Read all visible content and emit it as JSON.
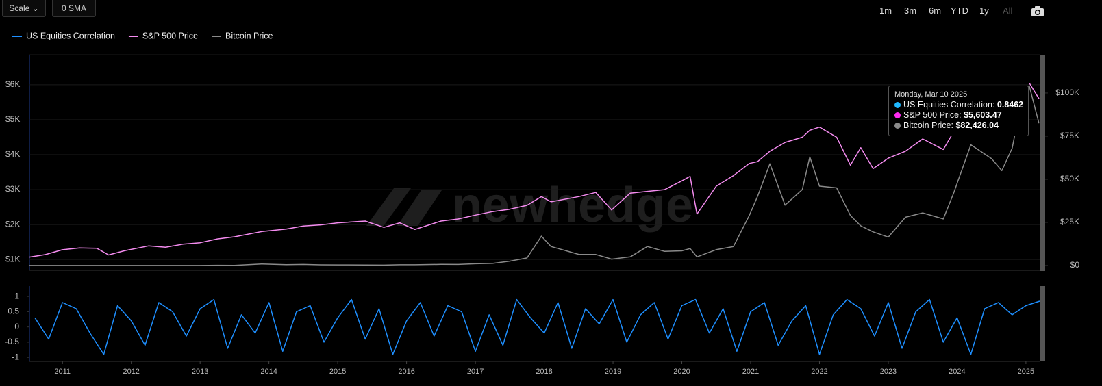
{
  "controls": {
    "scale": "Scale",
    "sma": "0 SMA",
    "ranges": [
      "1m",
      "3m",
      "6m",
      "YTD",
      "1y",
      "All"
    ]
  },
  "watermark": "newhedge",
  "tooltip": {
    "date": "Monday, Mar 10 2025",
    "items": [
      {
        "label": "US Equities Correlation:",
        "value": "0.8462",
        "color": "#1fb8ff"
      },
      {
        "label": "S&P 500 Price:",
        "value": "$5,603.47",
        "color": "#ff2bf0"
      },
      {
        "label": "Bitcoin Price:",
        "value": "$82,426.04",
        "color": "#8a8a8a"
      }
    ]
  },
  "chart_data": [
    {
      "type": "line",
      "x": [
        2010.52,
        2010.75,
        2011.0,
        2011.25,
        2011.5,
        2011.67,
        2011.9,
        2012.25,
        2012.5,
        2012.75,
        2013.0,
        2013.25,
        2013.5,
        2013.9,
        2014.25,
        2014.5,
        2014.75,
        2015.0,
        2015.4,
        2015.67,
        2015.9,
        2016.12,
        2016.5,
        2016.75,
        2017.0,
        2017.25,
        2017.5,
        2017.75,
        2017.96,
        2018.1,
        2018.5,
        2018.75,
        2018.98,
        2019.25,
        2019.5,
        2019.75,
        2020.0,
        2020.12,
        2020.22,
        2020.5,
        2020.75,
        2020.98,
        2021.1,
        2021.28,
        2021.5,
        2021.75,
        2021.86,
        2022.0,
        2022.25,
        2022.45,
        2022.6,
        2022.78,
        2023.0,
        2023.25,
        2023.5,
        2023.8,
        2023.95,
        2024.2,
        2024.5,
        2024.65,
        2024.8,
        2024.96,
        2025.05,
        2025.19
      ],
      "series": [
        {
          "name": "S&P 500 Price",
          "color": "#f58cf0",
          "axis": "y",
          "values": [
            1070,
            1140,
            1280,
            1330,
            1320,
            1130,
            1250,
            1390,
            1350,
            1440,
            1480,
            1590,
            1650,
            1800,
            1870,
            1960,
            1990,
            2050,
            2100,
            1920,
            2050,
            1860,
            2100,
            2160,
            2270,
            2370,
            2440,
            2550,
            2800,
            2650,
            2800,
            2920,
            2420,
            2900,
            2950,
            3000,
            3250,
            3380,
            2300,
            3100,
            3400,
            3750,
            3800,
            4100,
            4350,
            4500,
            4700,
            4790,
            4500,
            3700,
            4200,
            3600,
            3900,
            4100,
            4450,
            4150,
            4650,
            null,
            null,
            null,
            null,
            null,
            6050,
            5603.47
          ]
        },
        {
          "name": "Bitcoin Price",
          "color": "#8a8a8a",
          "axis": "y2",
          "values": [
            0.07,
            0.2,
            0.3,
            0.8,
            15,
            5,
            3,
            5,
            7,
            12,
            13,
            130,
            90,
            900,
            450,
            620,
            380,
            320,
            240,
            230,
            430,
            400,
            650,
            610,
            1000,
            1200,
            2500,
            4400,
            17000,
            11000,
            6500,
            6400,
            3700,
            5000,
            11000,
            8200,
            8500,
            9800,
            5000,
            9200,
            11000,
            29000,
            40000,
            59000,
            35000,
            44000,
            63000,
            46000,
            45000,
            29000,
            23000,
            19500,
            16500,
            28000,
            30500,
            27000,
            42000,
            70000,
            62000,
            55000,
            68000,
            100000,
            104000,
            82426.04
          ]
        }
      ],
      "xlim": [
        2010.52,
        2025.2
      ],
      "ylim": [
        690,
        6860
      ],
      "yticks": [
        {
          "value": 1000,
          "label": "$1K"
        },
        {
          "value": 2000,
          "label": "$2K"
        },
        {
          "value": 3000,
          "label": "$3K"
        },
        {
          "value": 4000,
          "label": "$4K"
        },
        {
          "value": 5000,
          "label": "$5K"
        },
        {
          "value": 6000,
          "label": "$6K"
        }
      ],
      "y2lim": [
        -2800,
        122200
      ],
      "y2ticks": [
        {
          "value": 0,
          "label": "$0"
        },
        {
          "value": 25000,
          "label": "$25K"
        },
        {
          "value": 50000,
          "label": "$50K"
        },
        {
          "value": 75000,
          "label": "$75K"
        },
        {
          "value": 100000,
          "label": "$100K"
        }
      ],
      "grid": true
    },
    {
      "type": "line",
      "x": [
        2010.6,
        2010.8,
        2011,
        2011.2,
        2011.4,
        2011.6,
        2011.8,
        2012,
        2012.2,
        2012.4,
        2012.6,
        2012.8,
        2013,
        2013.2,
        2013.4,
        2013.6,
        2013.8,
        2014,
        2014.2,
        2014.4,
        2014.6,
        2014.8,
        2015,
        2015.2,
        2015.4,
        2015.6,
        2015.8,
        2016,
        2016.2,
        2016.4,
        2016.6,
        2016.8,
        2017,
        2017.2,
        2017.4,
        2017.6,
        2017.8,
        2018,
        2018.2,
        2018.4,
        2018.6,
        2018.8,
        2019,
        2019.2,
        2019.4,
        2019.6,
        2019.8,
        2020,
        2020.2,
        2020.4,
        2020.6,
        2020.8,
        2021,
        2021.2,
        2021.4,
        2021.6,
        2021.8,
        2022,
        2022.2,
        2022.4,
        2022.6,
        2022.8,
        2023,
        2023.2,
        2023.4,
        2023.6,
        2023.8,
        2024,
        2024.2,
        2024.4,
        2024.6,
        2024.8,
        2025,
        2025.2
      ],
      "series": [
        {
          "name": "US Equities Correlation",
          "color": "#1e8fff",
          "values": [
            0.3,
            -0.4,
            0.8,
            0.6,
            -0.2,
            -0.9,
            0.7,
            0.2,
            -0.6,
            0.8,
            0.5,
            -0.3,
            0.6,
            0.9,
            -0.7,
            0.4,
            -0.2,
            0.8,
            -0.8,
            0.5,
            0.7,
            -0.5,
            0.3,
            0.9,
            -0.4,
            0.6,
            -0.9,
            0.2,
            0.8,
            -0.3,
            0.7,
            0.5,
            -0.8,
            0.4,
            -0.6,
            0.9,
            0.3,
            -0.2,
            0.8,
            -0.7,
            0.6,
            0.1,
            0.9,
            -0.5,
            0.4,
            0.8,
            -0.4,
            0.7,
            0.9,
            -0.2,
            0.6,
            -0.8,
            0.5,
            0.8,
            -0.6,
            0.2,
            0.7,
            -0.9,
            0.4,
            0.9,
            0.6,
            -0.3,
            0.8,
            -0.7,
            0.5,
            0.9,
            -0.5,
            0.3,
            -0.9,
            0.6,
            0.8,
            0.4,
            0.7,
            0.8462
          ]
        }
      ],
      "xlim": [
        2010.52,
        2025.2
      ],
      "xticks": [
        2011,
        2012,
        2013,
        2014,
        2015,
        2016,
        2017,
        2018,
        2019,
        2020,
        2021,
        2022,
        2023,
        2024,
        2025
      ],
      "ylim": [
        -1.13,
        1.34
      ],
      "yticks": [
        1,
        0.5,
        0,
        -0.5,
        -1
      ]
    }
  ]
}
